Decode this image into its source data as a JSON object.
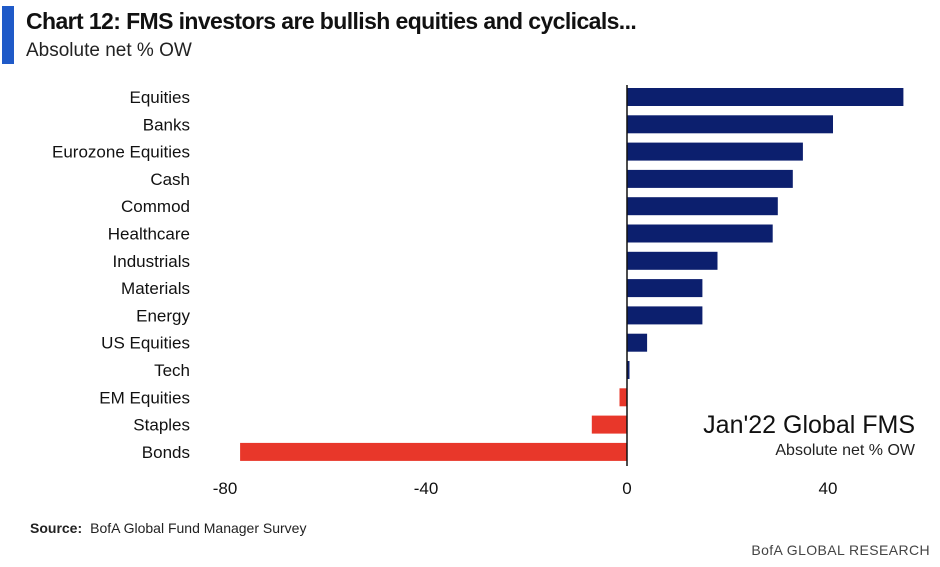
{
  "header": {
    "title": "Chart 12: FMS investors are bullish equities and cyclicals...",
    "subtitle": "Absolute net % OW"
  },
  "colors": {
    "accent": "#1f5ac8",
    "positive": "#0c1f6e",
    "negative": "#e8372a"
  },
  "footer": {
    "source_label": "Source:",
    "source_text": "BofA Global Fund Manager Survey",
    "brand": "BofA GLOBAL RESEARCH"
  },
  "chart_data": {
    "type": "bar",
    "orientation": "horizontal",
    "categories": [
      "Equities",
      "Banks",
      "Eurozone Equities",
      "Cash",
      "Commod",
      "Healthcare",
      "Industrials",
      "Materials",
      "Energy",
      "US Equities",
      "Tech",
      "EM Equities",
      "Staples",
      "Bonds"
    ],
    "values": [
      55,
      41,
      35,
      33,
      30,
      29,
      18,
      15,
      15,
      4,
      0.5,
      -1.5,
      -7,
      -77
    ],
    "xticks": [
      -80,
      -40,
      0,
      40
    ],
    "xlim": [
      -80,
      55
    ],
    "annotation": {
      "title": "Jan'22 Global FMS",
      "subtitle": "Absolute net % OW"
    }
  }
}
